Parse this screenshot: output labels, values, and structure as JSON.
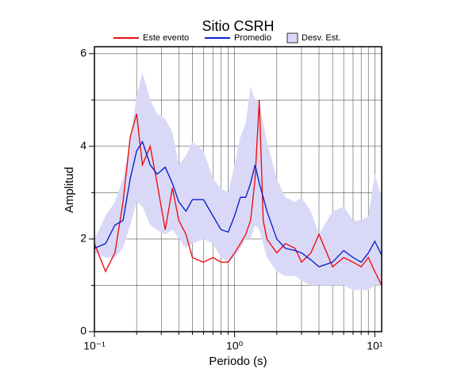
{
  "chart_data": {
    "type": "line",
    "title": "Sitio CSRH",
    "xlabel": "Periodo (s)",
    "ylabel": "Amplitud",
    "xscale": "log",
    "grid": true,
    "xlim": [
      0.1,
      11.2
    ],
    "ylim": [
      0,
      6.15
    ],
    "xticks": [
      {
        "value": 0.1,
        "label": "10⁻¹"
      },
      {
        "value": 1,
        "label": "10⁰"
      },
      {
        "value": 10,
        "label": "10¹"
      }
    ],
    "xminor": [
      0.2,
      0.3,
      0.4,
      0.5,
      0.6,
      0.7,
      0.8,
      0.9,
      2,
      3,
      4,
      5,
      6,
      7,
      8,
      9
    ],
    "yticks": [
      0,
      2,
      4,
      6
    ],
    "yminor": [
      1,
      3,
      5
    ],
    "x": [
      0.1,
      0.12,
      0.14,
      0.16,
      0.18,
      0.2,
      0.22,
      0.25,
      0.28,
      0.32,
      0.36,
      0.4,
      0.45,
      0.5,
      0.6,
      0.7,
      0.8,
      0.9,
      1.0,
      1.1,
      1.2,
      1.3,
      1.4,
      1.5,
      1.6,
      1.7,
      2.0,
      2.3,
      2.7,
      3.0,
      3.5,
      4,
      5,
      6,
      7,
      8,
      9,
      10,
      11.2
    ],
    "series": [
      {
        "name": "Desv. Est.",
        "color": "#d9d9f7",
        "kind": "band",
        "upper": [
          2.0,
          2.5,
          2.8,
          3.3,
          4.1,
          5.1,
          5.6,
          5.0,
          4.7,
          4.6,
          4.3,
          3.6,
          3.8,
          4.1,
          3.9,
          3.3,
          3.1,
          3.0,
          3.6,
          4.2,
          4.5,
          5.3,
          5.0,
          5.0,
          4.5,
          4.1,
          3.3,
          2.9,
          2.8,
          2.9,
          2.6,
          2.1,
          2.6,
          2.7,
          2.4,
          2.4,
          2.5,
          3.4,
          2.9
        ],
        "lower": [
          1.7,
          1.6,
          1.6,
          1.8,
          2.3,
          2.8,
          2.7,
          2.3,
          2.2,
          2.1,
          2.2,
          2.0,
          1.8,
          1.9,
          2.0,
          1.9,
          1.6,
          1.5,
          1.6,
          1.8,
          2.0,
          2.0,
          2.3,
          2.2,
          1.9,
          1.6,
          1.3,
          1.2,
          1.2,
          1.1,
          1.0,
          1.0,
          1.0,
          1.0,
          0.9,
          0.9,
          0.9,
          1.0,
          1.0
        ]
      },
      {
        "name": "Este evento",
        "color": "#ee1111",
        "values": [
          1.9,
          1.3,
          1.7,
          2.8,
          4.2,
          4.7,
          3.6,
          4.0,
          3.2,
          2.2,
          3.1,
          2.4,
          2.1,
          1.6,
          1.5,
          1.6,
          1.5,
          1.5,
          1.7,
          1.9,
          2.1,
          2.4,
          3.3,
          5.0,
          2.4,
          2.0,
          1.7,
          1.9,
          1.8,
          1.5,
          1.7,
          2.1,
          1.4,
          1.6,
          1.5,
          1.4,
          1.6,
          1.3,
          1.0
        ]
      },
      {
        "name": "Promedio",
        "color": "#1122cc",
        "values": [
          1.8,
          1.9,
          2.3,
          2.4,
          3.3,
          3.9,
          4.1,
          3.6,
          3.4,
          3.55,
          3.2,
          2.8,
          2.6,
          2.85,
          2.85,
          2.5,
          2.2,
          2.15,
          2.5,
          2.9,
          2.9,
          3.2,
          3.6,
          3.2,
          2.9,
          2.6,
          2.0,
          1.8,
          1.75,
          1.7,
          1.55,
          1.4,
          1.5,
          1.75,
          1.6,
          1.5,
          1.7,
          1.95,
          1.65
        ]
      }
    ]
  }
}
